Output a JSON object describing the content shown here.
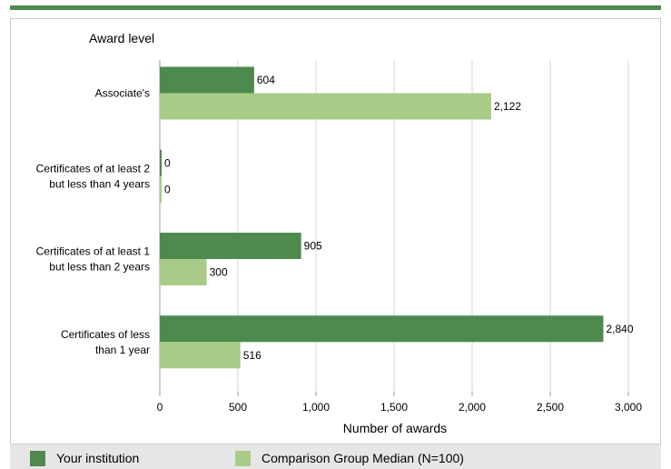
{
  "chart_data": {
    "type": "bar",
    "orientation": "horizontal",
    "ylabel": "Award level",
    "xlabel": "Number of awards",
    "categories": [
      [
        "Associate's"
      ],
      [
        "Certificates of at least 2",
        "but less than 4 years"
      ],
      [
        "Certificates of at least 1",
        "but  less than 2 years"
      ],
      [
        "Certificates of less",
        "than 1 year"
      ]
    ],
    "series": [
      {
        "name": "Your institution",
        "color": "#4e8a4e",
        "values": [
          604,
          0,
          905,
          2840
        ],
        "labels": [
          "604",
          "0",
          "905",
          "2,840"
        ]
      },
      {
        "name": "Comparison Group Median (N=100)",
        "color": "#a8cc88",
        "values": [
          2122,
          0,
          300,
          516
        ],
        "labels": [
          "2,122",
          "0",
          "300",
          "516"
        ]
      }
    ],
    "xlim": [
      0,
      3000
    ],
    "xticks": [
      0,
      500,
      1000,
      1500,
      2000,
      2500,
      3000
    ],
    "xtick_labels": [
      "0",
      "500",
      "1,000",
      "1,500",
      "2,000",
      "2,500",
      "3,000"
    ],
    "grid": true,
    "legend_position": "bottom"
  }
}
